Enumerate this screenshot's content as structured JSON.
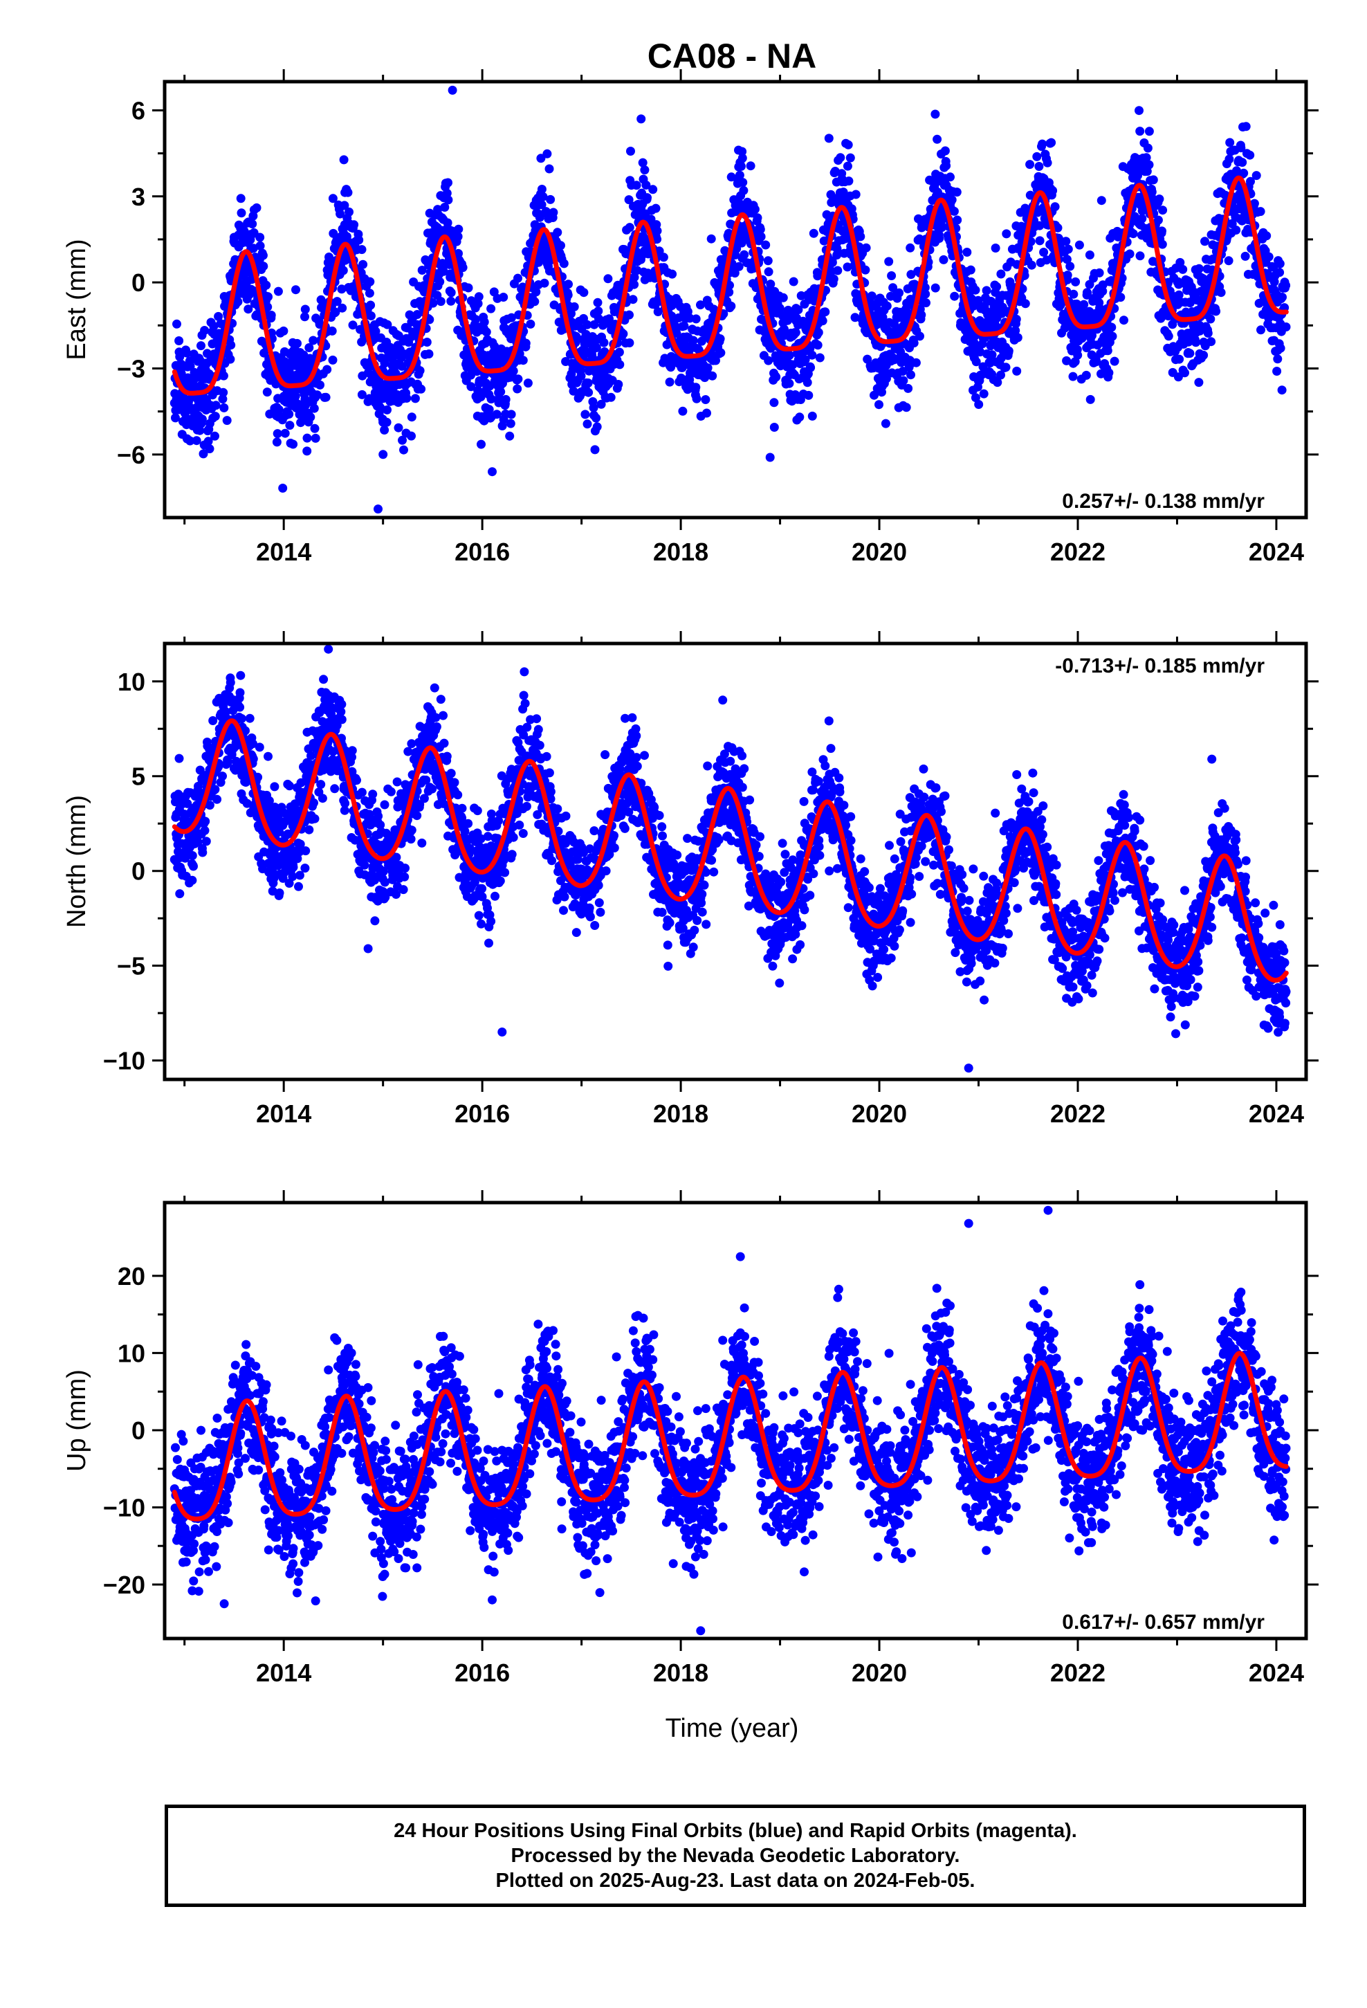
{
  "title": "CA08 - NA",
  "xlabel": "Time (year)",
  "footer": {
    "line1": "24 Hour Positions Using Final Orbits (blue) and Rapid Orbits (magenta).",
    "line2": "Processed by the Nevada Geodetic Laboratory.",
    "line3": "Plotted on 2025-Aug-23. Last data on 2024-Feb-05."
  },
  "colors": {
    "data": "#0000ff",
    "model": "#ff0000"
  },
  "chart_data": [
    {
      "type": "scatter",
      "ylabel": "East (mm)",
      "rate_label": "0.257+/- 0.138 mm/yr",
      "rate_position": "bottom-right",
      "xlim": [
        2012.8,
        2024.3
      ],
      "ylim": [
        -8.2,
        7.0
      ],
      "xticks": [
        2014,
        2016,
        2018,
        2020,
        2022,
        2024
      ],
      "yticks": [
        -6,
        -3,
        0,
        3,
        6
      ],
      "yticklabels": [
        "−6",
        "−3",
        "0",
        "3",
        "6"
      ],
      "data_start": 2012.9,
      "data_end": 2024.1,
      "model": {
        "intercept_mm": -0.8,
        "rate_mm_per_yr": 0.257,
        "annual_amplitude_mm": 2.4,
        "annual_peak_year_fraction": 0.62,
        "semiannual_amplitude_mm": 0.6,
        "scatter_sd_mm": 1.0
      },
      "notable_outliers": [
        [
          2014.95,
          -7.9
        ],
        [
          2015.0,
          -6.0
        ],
        [
          2016.1,
          -6.6
        ],
        [
          2018.9,
          -6.1
        ],
        [
          2015.7,
          6.7
        ],
        [
          2017.6,
          5.7
        ]
      ]
    },
    {
      "type": "scatter",
      "ylabel": "North (mm)",
      "rate_label": "-0.713+/- 0.185 mm/yr",
      "rate_position": "top-right",
      "xlim": [
        2012.8,
        2024.3
      ],
      "ylim": [
        -11.0,
        12.0
      ],
      "xticks": [
        2014,
        2016,
        2018,
        2020,
        2022,
        2024
      ],
      "yticks": [
        -10,
        -5,
        0,
        5,
        10
      ],
      "yticklabels": [
        "−10",
        "−5",
        "0",
        "5",
        "10"
      ],
      "data_start": 2012.9,
      "data_end": 2024.1,
      "model": {
        "intercept_mm": 1.2,
        "rate_mm_per_yr": -0.713,
        "annual_amplitude_mm": 3.1,
        "annual_peak_year_fraction": 0.48,
        "semiannual_amplitude_mm": 0.4,
        "scatter_sd_mm": 1.3
      },
      "notable_outliers": [
        [
          2014.45,
          11.7
        ],
        [
          2016.2,
          -8.5
        ],
        [
          2020.9,
          -10.4
        ],
        [
          2014.85,
          -4.1
        ],
        [
          2023.35,
          5.9
        ]
      ]
    },
    {
      "type": "scatter",
      "ylabel": "Up (mm)",
      "rate_label": "0.617+/- 0.657 mm/yr",
      "rate_position": "bottom-right",
      "xlim": [
        2012.8,
        2024.3
      ],
      "ylim": [
        -27.0,
        29.5
      ],
      "xticks": [
        2014,
        2016,
        2018,
        2020,
        2022,
        2024
      ],
      "yticks": [
        -20,
        -10,
        0,
        10,
        20
      ],
      "yticklabels": [
        "−20",
        "−10",
        "0",
        "10",
        "20"
      ],
      "data_start": 2012.9,
      "data_end": 2024.1,
      "model": {
        "intercept_mm": -2.5,
        "rate_mm_per_yr": 0.617,
        "annual_amplitude_mm": 7.5,
        "annual_peak_year_fraction": 0.63,
        "semiannual_amplitude_mm": 1.5,
        "scatter_sd_mm": 4.0
      },
      "notable_outliers": [
        [
          2021.7,
          28.5
        ],
        [
          2018.2,
          -26.0
        ],
        [
          2013.4,
          -22.5
        ],
        [
          2016.1,
          -22.0
        ],
        [
          2020.9,
          26.8
        ],
        [
          2018.6,
          22.5
        ]
      ]
    }
  ]
}
